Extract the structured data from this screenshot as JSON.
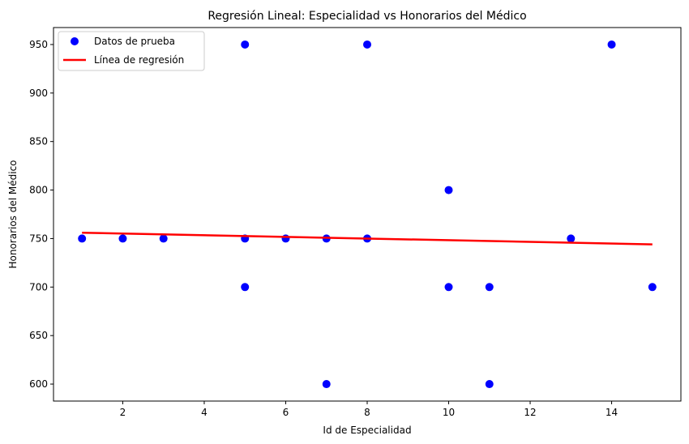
{
  "chart_data": {
    "type": "scatter",
    "title": "Regresión Lineal: Especialidad vs Honorarios del Médico",
    "xlabel": "Id de Especialidad",
    "ylabel": "Honorarios del Médico",
    "xlim": [
      0.3,
      15.7
    ],
    "ylim": [
      582.5,
      967.5
    ],
    "xticks": [
      2,
      4,
      6,
      8,
      10,
      12,
      14
    ],
    "yticks": [
      600,
      650,
      700,
      750,
      800,
      850,
      900,
      950
    ],
    "grid": false,
    "legend_position": "top-left",
    "series": [
      {
        "name": "Datos de prueba",
        "kind": "scatter",
        "color": "#0000ff",
        "points": [
          [
            1,
            750
          ],
          [
            2,
            750
          ],
          [
            3,
            750
          ],
          [
            5,
            950
          ],
          [
            5,
            750
          ],
          [
            5,
            700
          ],
          [
            6,
            750
          ],
          [
            7,
            750
          ],
          [
            7,
            600
          ],
          [
            8,
            950
          ],
          [
            8,
            750
          ],
          [
            10,
            800
          ],
          [
            10,
            700
          ],
          [
            11,
            700
          ],
          [
            11,
            600
          ],
          [
            13,
            750
          ],
          [
            14,
            950
          ],
          [
            15,
            700
          ]
        ]
      },
      {
        "name": "Línea de regresión",
        "kind": "line",
        "color": "#ff0000",
        "points": [
          [
            1,
            756
          ],
          [
            15,
            744
          ]
        ]
      }
    ]
  }
}
